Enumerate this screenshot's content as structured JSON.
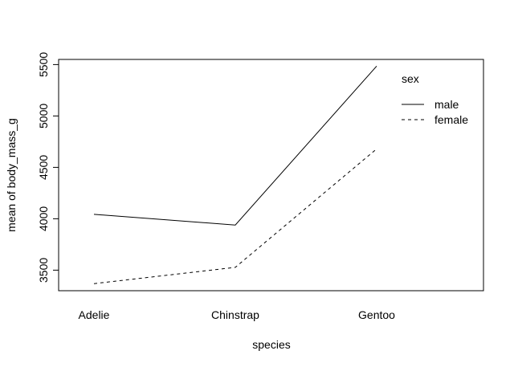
{
  "chart_data": {
    "type": "line",
    "title": "",
    "xlabel": "species",
    "ylabel": "mean of  body_mass_g",
    "categories": [
      "Adelie",
      "Chinstrap",
      "Gentoo"
    ],
    "ylim": [
      3300,
      5550
    ],
    "yticks": [
      3500,
      4000,
      4500,
      5000,
      5500
    ],
    "grid": false,
    "legend": {
      "title": "sex",
      "placement": "top-right"
    },
    "series": [
      {
        "name": "male",
        "values": [
          4043,
          3939,
          5485
        ],
        "line_style": "solid"
      },
      {
        "name": "female",
        "values": [
          3369,
          3527,
          4680
        ],
        "line_style": "dashed"
      }
    ]
  }
}
